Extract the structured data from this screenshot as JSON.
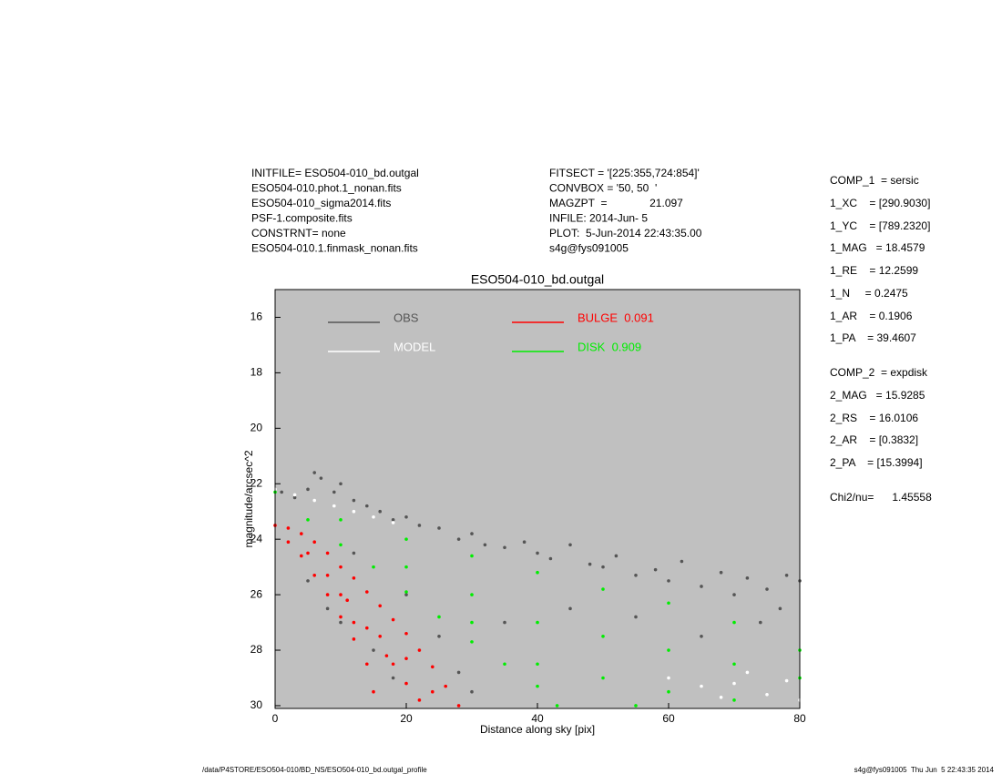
{
  "chart_data": {
    "type": "scatter",
    "title": "ESO504-010_bd.outgal",
    "x_label": "Distance along sky [pix]",
    "y_label": "magnitude/arcsec^2",
    "xlim": [
      0,
      80
    ],
    "ylim": [
      15,
      30.1
    ],
    "y_inverted": true,
    "xticks": [
      0,
      20,
      40,
      60,
      80
    ],
    "yticks": [
      16,
      18,
      20,
      22,
      24,
      26,
      28,
      30
    ],
    "background": "#c0c0c0",
    "series": [
      {
        "name": "OBS",
        "color": "#555555",
        "x": [
          1,
          3,
          5,
          6,
          7,
          9,
          10,
          12,
          14,
          16,
          18,
          20,
          22,
          25,
          28,
          30,
          32,
          35,
          38,
          40,
          42,
          45,
          48,
          50,
          52,
          55,
          58,
          60,
          62,
          65,
          68,
          70,
          72,
          75,
          78,
          80,
          74,
          77,
          10,
          15,
          20,
          25,
          28,
          18,
          8,
          5,
          12,
          30,
          35,
          45,
          55,
          65
        ],
        "y": [
          22.3,
          22.5,
          22.2,
          21.6,
          21.8,
          22.3,
          22,
          22.6,
          22.8,
          23,
          23.3,
          23.2,
          23.5,
          23.6,
          24,
          23.8,
          24.2,
          24.3,
          24.1,
          24.5,
          24.7,
          24.2,
          24.9,
          25,
          24.6,
          25.3,
          25.1,
          25.5,
          24.8,
          25.7,
          25.2,
          26,
          25.4,
          25.8,
          25.3,
          25.5,
          27,
          26.5,
          27,
          28,
          26,
          27.5,
          28.8,
          29,
          26.5,
          25.5,
          24.5,
          29.5,
          27,
          26.5,
          26.8,
          27.5
        ]
      },
      {
        "name": "MODEL",
        "color": "#ffffff",
        "x": [
          0,
          3,
          6,
          9,
          12,
          15,
          18,
          60,
          65,
          70,
          75,
          80,
          72,
          78,
          68
        ],
        "y": [
          22.2,
          22.4,
          22.6,
          22.8,
          23,
          23.2,
          23.4,
          29,
          29.3,
          29.2,
          29.6,
          29.8,
          28.8,
          29.1,
          29.7
        ]
      },
      {
        "name": "BULGE  0.091",
        "color": "#ff0000",
        "x": [
          0,
          2,
          4,
          6,
          8,
          10,
          12,
          14,
          16,
          18,
          20,
          22,
          24,
          26,
          28,
          2,
          4,
          6,
          8,
          10,
          12,
          14,
          15,
          5,
          8,
          11,
          14,
          17,
          20,
          22,
          10,
          16,
          18,
          12,
          20,
          24
        ],
        "y": [
          23.5,
          23.6,
          23.8,
          24.1,
          24.5,
          25,
          25.4,
          25.9,
          26.4,
          26.9,
          27.4,
          28,
          28.6,
          29.3,
          30,
          24.1,
          24.6,
          25.3,
          26,
          26.8,
          27.6,
          28.5,
          29.5,
          24.5,
          25.3,
          26.2,
          27.2,
          28.2,
          29.2,
          29.8,
          26,
          27.5,
          28.5,
          27,
          28.3,
          29.5
        ]
      },
      {
        "name": "DISK  0.909",
        "color": "#00ee00",
        "x": [
          0,
          10,
          20,
          30,
          40,
          50,
          60,
          70,
          80,
          5,
          10,
          15,
          20,
          25,
          30,
          35,
          40,
          43,
          20,
          30,
          40,
          50,
          60,
          70,
          80,
          50,
          60,
          30,
          40,
          70,
          55
        ],
        "y": [
          22.3,
          23.3,
          24,
          24.6,
          25.2,
          25.8,
          26.3,
          27,
          28,
          23.3,
          24.2,
          25,
          25.9,
          26.8,
          27.7,
          28.5,
          29.3,
          30,
          25,
          26,
          27,
          27.5,
          28,
          28.5,
          29,
          29,
          29.5,
          27,
          28.5,
          29.8,
          30
        ]
      }
    ],
    "annotations": {
      "header_left": [
        "INITFILE= ESO504-010_bd.outgal",
        "ESO504-010.phot.1_nonan.fits",
        "ESO504-010_sigma2014.fits",
        "PSF-1.composite.fits",
        "CONSTRNT= none",
        "ESO504-010.1.finmask_nonan.fits"
      ],
      "header_right": [
        "FITSECT = '[225:355,724:854]'",
        "CONVBOX = '50, 50  '",
        "MAGZPT  =              21.097",
        "INFILE: 2014-Jun- 5",
        "PLOT:  5-Jun-2014 22:43:35.00",
        "s4g@fys091005"
      ],
      "params": [
        "COMP_1  = sersic",
        "1_XC    = [290.9030]",
        "1_YC    = [789.2320]",
        "1_MAG   = 18.4579",
        "1_RE    = 12.2599",
        "1_N     = 0.2475",
        "1_AR    = 0.1906",
        "1_PA    = 39.4607",
        "COMP_2  = expdisk",
        "2_MAG   = 15.9285",
        "2_RS    = 16.0106",
        "2_AR    = [0.3832]",
        "2_PA    = [15.3994]",
        "Chi2/nu=      1.45558"
      ],
      "footer_left": "/data/P4STORE/ESO504-010/BD_NS/ESO504-010_bd.outgal_profile",
      "footer_right": "s4g@fys091005  Thu Jun  5 22:43:35 2014"
    }
  }
}
